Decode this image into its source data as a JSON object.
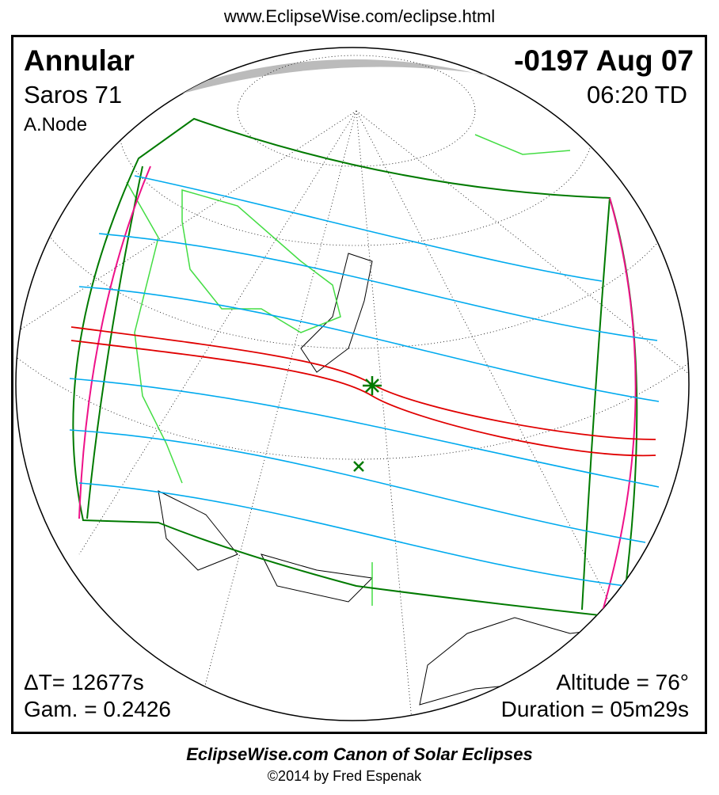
{
  "header": {
    "url": "www.EclipseWise.com/eclipse.html"
  },
  "eclipse": {
    "type": "Annular",
    "saros": "Saros  71",
    "node": "A.Node",
    "date": "-0197 Aug 07",
    "time": "06:20 TD",
    "delta_t": "ΔT=  12677s",
    "gamma": "Gam. = 0.2426",
    "altitude": "Altitude = 76°",
    "duration": "Duration = 05m29s"
  },
  "footer": {
    "canon": "EclipseWise.com Canon of Solar Eclipses",
    "copyright": "©2014 by Fred Espenak"
  },
  "colors": {
    "central_path": "#e00000",
    "penumbral_lines": "#00aaee",
    "penumbral_limits": "#007a00",
    "rise_set": "#ee1188",
    "borders": "#44dd44",
    "night": "#bbbbbb"
  }
}
